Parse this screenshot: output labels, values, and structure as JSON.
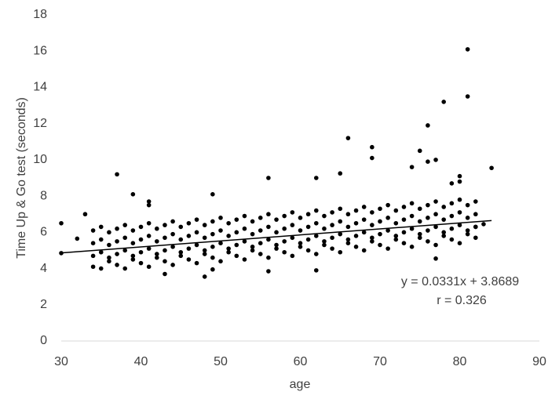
{
  "chart_data": {
    "type": "scatter",
    "y_label": "Time Up & Go test (seconds)",
    "x_label": "age",
    "annotations": [
      "y = 0.0331x + 3.8689",
      "r = 0.326"
    ],
    "color": "#000000",
    "xlim": [
      30,
      90
    ],
    "xticks": [
      30,
      40,
      50,
      60,
      70,
      80,
      90
    ],
    "ylim": [
      0,
      18
    ],
    "yticks": [
      0,
      2,
      4,
      6,
      8,
      10,
      12,
      14,
      16,
      18
    ],
    "trendline": {
      "x": [
        30,
        84
      ],
      "y": [
        4.862,
        6.649
      ]
    },
    "x": [
      30,
      30,
      32,
      33,
      37,
      39,
      41,
      41,
      49,
      56,
      62,
      65,
      66,
      69,
      69,
      74,
      75,
      76,
      76,
      77,
      78,
      81,
      81,
      84,
      80,
      80,
      79,
      77,
      48,
      43,
      49,
      56,
      62,
      83,
      82,
      34,
      34,
      34,
      34,
      35,
      35,
      35,
      35,
      36,
      36,
      36,
      36,
      37,
      37,
      37,
      37,
      38,
      38,
      38,
      38,
      39,
      39,
      39,
      39,
      40,
      40,
      40,
      40,
      41,
      41,
      41,
      41,
      42,
      42,
      42,
      42,
      43,
      43,
      43,
      43,
      44,
      44,
      44,
      44,
      45,
      45,
      45,
      45,
      46,
      46,
      46,
      46,
      47,
      47,
      47,
      47,
      48,
      48,
      48,
      48,
      49,
      49,
      49,
      49,
      50,
      50,
      50,
      50,
      51,
      51,
      51,
      51,
      52,
      52,
      52,
      52,
      53,
      53,
      53,
      53,
      54,
      54,
      54,
      54,
      55,
      55,
      55,
      55,
      56,
      56,
      56,
      56,
      57,
      57,
      57,
      57,
      58,
      58,
      58,
      58,
      59,
      59,
      59,
      59,
      60,
      60,
      60,
      60,
      61,
      61,
      61,
      61,
      62,
      62,
      62,
      62,
      63,
      63,
      63,
      63,
      64,
      64,
      64,
      64,
      65,
      65,
      65,
      65,
      66,
      66,
      66,
      66,
      67,
      67,
      67,
      67,
      68,
      68,
      68,
      68,
      69,
      69,
      69,
      69,
      70,
      70,
      70,
      70,
      71,
      71,
      71,
      71,
      72,
      72,
      72,
      72,
      73,
      73,
      73,
      73,
      74,
      74,
      74,
      74,
      75,
      75,
      75,
      75,
      76,
      76,
      76,
      76,
      77,
      77,
      77,
      77,
      78,
      78,
      78,
      78,
      79,
      79,
      79,
      79,
      80,
      80,
      80,
      80,
      81,
      81,
      81,
      81,
      82,
      82,
      82,
      82
    ],
    "y": [
      6.5,
      4.85,
      5.65,
      7.0,
      9.2,
      8.1,
      7.7,
      7.5,
      8.1,
      9.0,
      9.0,
      9.25,
      11.2,
      10.7,
      10.1,
      9.6,
      10.5,
      11.9,
      9.9,
      10.0,
      13.2,
      16.1,
      13.5,
      9.55,
      9.1,
      8.8,
      8.7,
      4.55,
      3.55,
      3.7,
      3.95,
      3.85,
      3.9,
      6.45,
      6.3,
      4.1,
      4.7,
      5.4,
      6.1,
      4.0,
      4.9,
      5.6,
      6.3,
      4.4,
      4.6,
      5.3,
      6.0,
      4.2,
      4.8,
      5.5,
      6.2,
      4.0,
      5.0,
      5.7,
      6.4,
      4.5,
      4.7,
      5.4,
      6.1,
      4.3,
      4.9,
      5.6,
      6.3,
      4.1,
      5.1,
      5.8,
      6.5,
      4.6,
      4.8,
      5.5,
      6.2,
      4.4,
      5.0,
      5.7,
      6.4,
      4.2,
      5.2,
      5.9,
      6.6,
      4.7,
      4.9,
      5.6,
      6.3,
      4.5,
      5.1,
      5.8,
      6.5,
      4.3,
      5.3,
      6.0,
      6.7,
      4.8,
      5.0,
      5.7,
      6.4,
      4.6,
      5.2,
      5.9,
      6.6,
      4.4,
      5.4,
      6.1,
      6.8,
      4.9,
      5.1,
      5.8,
      6.5,
      4.7,
      5.3,
      6.0,
      6.7,
      4.5,
      5.5,
      6.2,
      6.9,
      5.0,
      5.2,
      5.9,
      6.6,
      4.8,
      5.4,
      6.1,
      6.8,
      4.6,
      5.6,
      6.3,
      7.0,
      5.1,
      5.3,
      6.0,
      6.7,
      4.9,
      5.5,
      6.2,
      6.9,
      4.7,
      5.7,
      6.4,
      7.1,
      5.2,
      5.4,
      6.1,
      6.8,
      5.0,
      5.6,
      6.3,
      7.0,
      4.8,
      5.8,
      6.5,
      7.2,
      5.3,
      5.5,
      6.2,
      6.9,
      5.1,
      5.7,
      6.4,
      7.1,
      4.9,
      5.9,
      6.6,
      7.3,
      5.4,
      5.6,
      6.3,
      7.0,
      5.2,
      5.8,
      6.5,
      7.2,
      5.0,
      6.0,
      6.7,
      7.4,
      5.5,
      5.7,
      6.4,
      7.1,
      5.3,
      5.9,
      6.6,
      7.3,
      5.1,
      6.1,
      6.8,
      7.5,
      5.6,
      5.8,
      6.5,
      7.2,
      5.4,
      6.0,
      6.7,
      7.4,
      5.2,
      6.2,
      6.9,
      7.6,
      5.7,
      5.9,
      6.6,
      7.3,
      5.5,
      6.1,
      6.8,
      7.5,
      5.3,
      6.3,
      7.0,
      7.7,
      5.8,
      6.0,
      6.7,
      7.4,
      5.6,
      6.2,
      6.9,
      7.6,
      5.4,
      6.4,
      7.1,
      7.8,
      5.9,
      6.1,
      6.8,
      7.5,
      5.7,
      6.3,
      7.0,
      7.7
    ]
  }
}
